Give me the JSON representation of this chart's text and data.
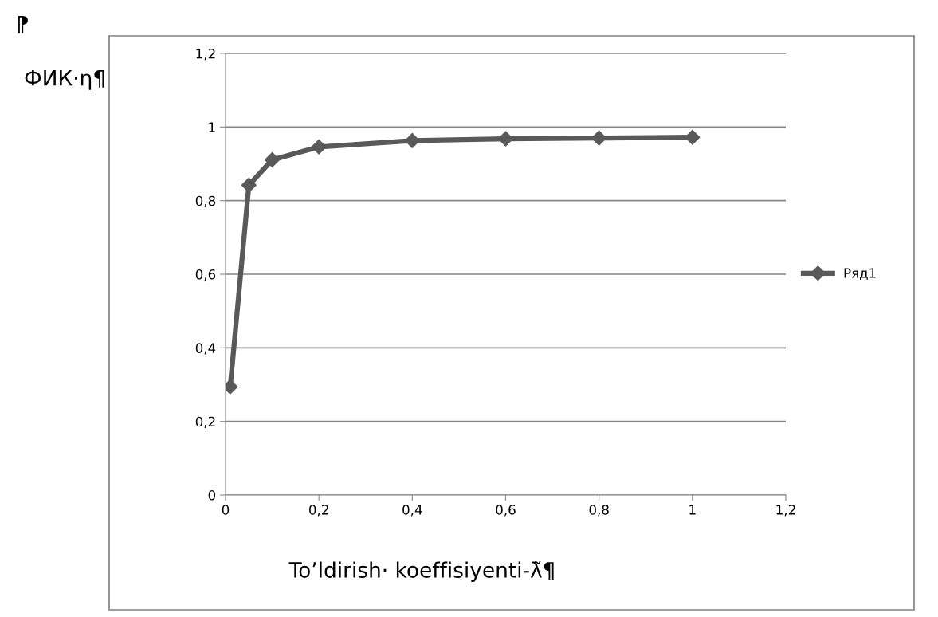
{
  "chart_data": {
    "type": "line",
    "xlabel": "To’ldirish· koeffisiyenti-λ̃¶",
    "ylabel": "ФИК·η¶",
    "annotations": [
      "⁋"
    ],
    "x": [
      0.01,
      0.05,
      0.1,
      0.2,
      0.4,
      0.6,
      0.8,
      1.0
    ],
    "series": [
      {
        "name": "Ряд1",
        "color": "#595959",
        "values": [
          0.294,
          0.842,
          0.911,
          0.946,
          0.963,
          0.968,
          0.97,
          0.972
        ]
      }
    ],
    "xlim": [
      0,
      1.2
    ],
    "ylim": [
      0,
      1.2
    ],
    "xticks": [
      0,
      {
        "value": 0.2,
        "label": "0,2"
      },
      {
        "value": 0.4,
        "label": "0,4"
      },
      {
        "value": 0.6,
        "label": "0,6"
      },
      {
        "value": 0.8,
        "label": "0,8"
      },
      1,
      {
        "value": 1.2,
        "label": "1,2"
      }
    ],
    "yticks": [
      0,
      {
        "value": 0.2,
        "label": "0,2"
      },
      {
        "value": 0.4,
        "label": "0,4"
      },
      {
        "value": 0.6,
        "label": "0,6"
      },
      {
        "value": 0.8,
        "label": "0,8"
      },
      1,
      {
        "value": 1.2,
        "label": "1,2"
      }
    ],
    "grid": "y",
    "legend": "right",
    "marker": "diamond",
    "line_style": "solid"
  }
}
